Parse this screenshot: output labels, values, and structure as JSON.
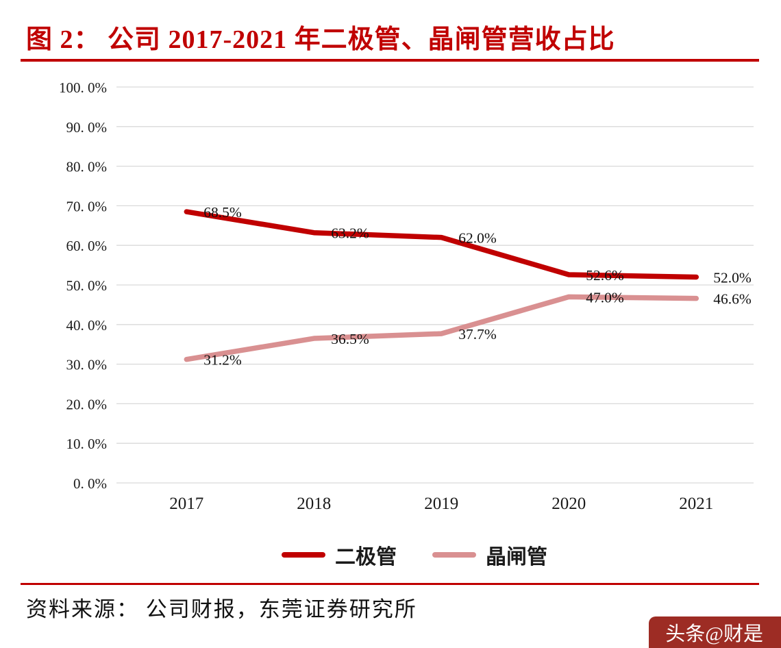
{
  "header": {
    "title": "图 2：  公司 2017-2021 年二极管、晶闸管营收占比"
  },
  "chart_data": {
    "type": "line",
    "categories": [
      "2017",
      "2018",
      "2019",
      "2020",
      "2021"
    ],
    "series": [
      {
        "name": "二极管",
        "color": "#c00000",
        "values": [
          68.5,
          63.2,
          62.0,
          52.6,
          52.0
        ],
        "labels": [
          "68.5%",
          "63.2%",
          "62.0%",
          "52.6%",
          "52.0%"
        ]
      },
      {
        "name": "晶闸管",
        "color": "#d99091",
        "values": [
          31.2,
          36.5,
          37.7,
          47.0,
          46.6
        ],
        "labels": [
          "31.2%",
          "36.5%",
          "37.7%",
          "47.0%",
          "46.6%"
        ]
      }
    ],
    "ylim": [
      0,
      100
    ],
    "ytick_step": 10,
    "ytick_labels": [
      "0. 0%",
      "10. 0%",
      "20. 0%",
      "30. 0%",
      "40. 0%",
      "50. 0%",
      "60. 0%",
      "70. 0%",
      "80. 0%",
      "90. 0%",
      "100. 0%"
    ],
    "grid": "horizontal",
    "legend_position": "bottom"
  },
  "footer": {
    "source": "资料来源：  公司财报，东莞证券研究所"
  },
  "watermark": {
    "text": "头条@财是"
  },
  "colors": {
    "accent": "#c00000",
    "grid": "#d9d9d9",
    "axis_text": "#1a1a1a",
    "watermark_bg": "#9d2c24"
  }
}
